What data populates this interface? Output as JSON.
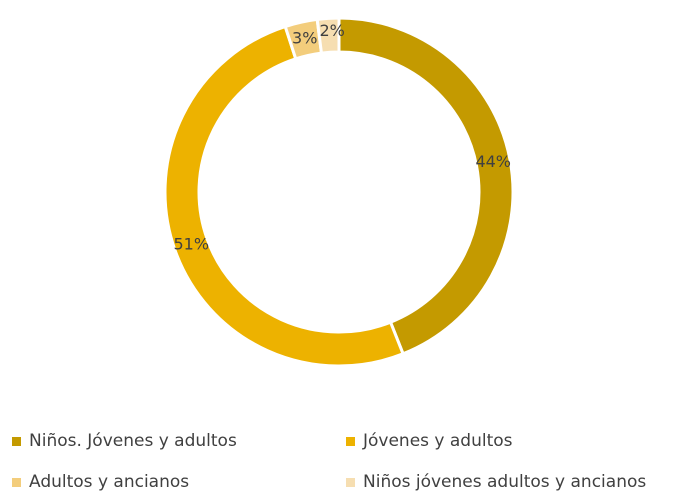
{
  "chart_data": {
    "type": "pie",
    "style": "donut",
    "title": "",
    "slices": [
      {
        "name": "Niños. Jóvenes y adultos",
        "value": 44,
        "label": "44%",
        "color": "#C49A00"
      },
      {
        "name": "Jóvenes y adultos",
        "value": 51,
        "label": "51%",
        "color": "#EDB200"
      },
      {
        "name": "Adultos y ancianos",
        "value": 3,
        "label": "3%",
        "color": "#F3CD7C"
      },
      {
        "name": "Niños jóvenes adultos y ancianos",
        "value": 2,
        "label": "2%",
        "color": "#F6DEB1"
      }
    ],
    "legend_position": "bottom",
    "label_color": "#404040"
  }
}
